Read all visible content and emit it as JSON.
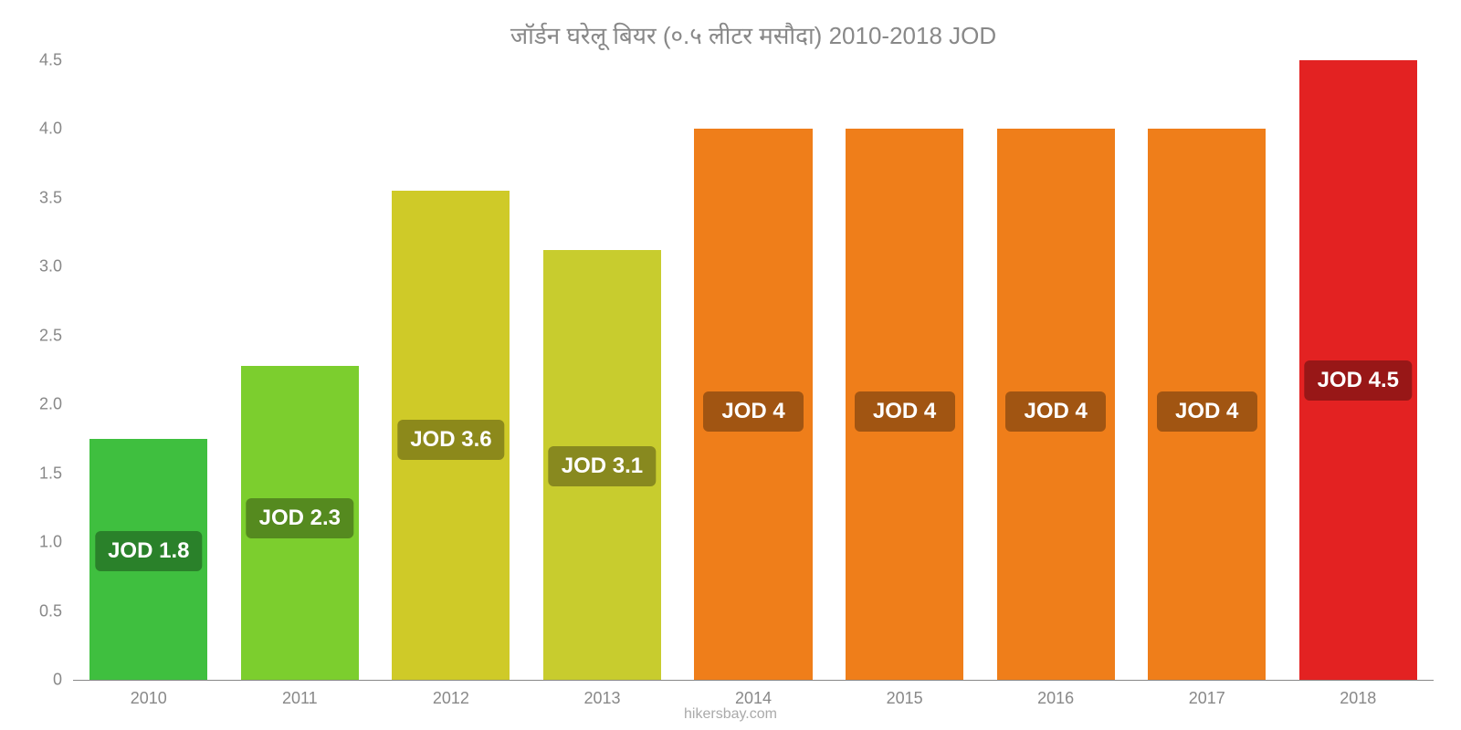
{
  "chart": {
    "type": "bar",
    "title": "जॉर्डन घरेलू बियर (०.५ लीटर मसौदा) 2010-2018 JOD",
    "title_color": "#888888",
    "title_fontsize": 26,
    "background_color": "#ffffff",
    "axis_color": "#888888",
    "tick_color": "#888888",
    "tick_fontsize": 18,
    "label_fontsize": 24,
    "label_text_color": "#ffffff",
    "bar_width": 0.78,
    "label_border_radius": 6,
    "ylim": [
      0,
      4.5
    ],
    "yticks": [
      0,
      0.5,
      1.0,
      1.5,
      2.0,
      2.5,
      3.0,
      3.5,
      4.0,
      4.5
    ],
    "ytick_labels": [
      "0",
      "0.5",
      "1.0",
      "1.5",
      "2.0",
      "2.5",
      "3.0",
      "3.5",
      "4.0",
      "4.5"
    ],
    "categories": [
      "2010",
      "2011",
      "2012",
      "2013",
      "2014",
      "2015",
      "2016",
      "2017",
      "2018"
    ],
    "values": [
      1.75,
      2.28,
      3.55,
      3.12,
      4.0,
      4.0,
      4.0,
      4.0,
      4.5
    ],
    "value_labels": [
      "JOD 1.8",
      "JOD 2.3",
      "JOD 3.6",
      "JOD 3.1",
      "JOD 4",
      "JOD 4",
      "JOD 4",
      "JOD 4",
      "JOD 4.5"
    ],
    "bar_colors": [
      "#3fbf3f",
      "#7cce2e",
      "#cfca28",
      "#c8cc2e",
      "#ef7e1a",
      "#ef7e1a",
      "#ef7e1a",
      "#ef7e1a",
      "#e32222"
    ],
    "label_bg_colors": [
      "#2a812a",
      "#558a1f",
      "#8c891b",
      "#88891f",
      "#a15512",
      "#a15512",
      "#a15512",
      "#a15512",
      "#981717"
    ],
    "footer": "hikersbay.com",
    "footer_color": "#aaaaaa",
    "footer_fontsize": 16
  }
}
